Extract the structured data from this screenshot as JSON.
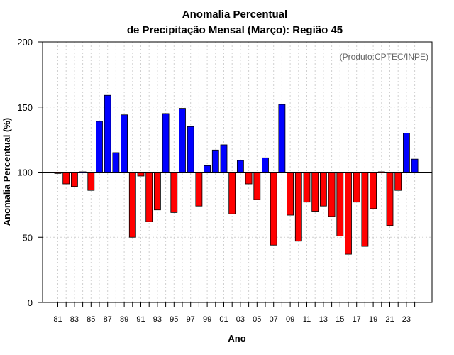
{
  "chart_data": {
    "type": "bar",
    "title_line1": "Anomalia Percentual",
    "title_line2": "de Precipitação Mensal (Março): Região 45",
    "xlabel": "Ano",
    "ylabel": "Anomalia Percentual (%)",
    "annotation": "(Produto:CPTEC/INPE)",
    "ylim": [
      0,
      200
    ],
    "yticks": [
      0,
      50,
      100,
      150,
      200
    ],
    "baseline": 100,
    "grid": true,
    "colors": {
      "above": "#0000ff",
      "below": "#ff0000",
      "grid": "#d0d0d0"
    },
    "years": [
      "1981",
      "1982",
      "1983",
      "1984",
      "1985",
      "1986",
      "1987",
      "1988",
      "1989",
      "1990",
      "1991",
      "1992",
      "1993",
      "1994",
      "1995",
      "1996",
      "1997",
      "1998",
      "1999",
      "2000",
      "2001",
      "2002",
      "2003",
      "2004",
      "2005",
      "2006",
      "2007",
      "2008",
      "2009",
      "2010",
      "2011",
      "2012",
      "2013",
      "2014",
      "2015",
      "2016",
      "2017",
      "2018",
      "2019",
      "2020",
      "2021",
      "2022",
      "2023",
      "2024"
    ],
    "xtick_labels": [
      "81",
      "",
      "83",
      "",
      "85",
      "",
      "87",
      "",
      "89",
      "",
      "91",
      "",
      "93",
      "",
      "95",
      "",
      "97",
      "",
      "99",
      "",
      "01",
      "",
      "03",
      "",
      "05",
      "",
      "07",
      "",
      "09",
      "",
      "11",
      "",
      "13",
      "",
      "15",
      "",
      "17",
      "",
      "19",
      "",
      "21",
      "",
      "23",
      ""
    ],
    "values": [
      99,
      91,
      89,
      100.5,
      86,
      139,
      159,
      115,
      144,
      50,
      97,
      62,
      71,
      145,
      69,
      149,
      135,
      74,
      105,
      117,
      121,
      68,
      109,
      91,
      79,
      111,
      44,
      152,
      67,
      47,
      77,
      70,
      74,
      66,
      51,
      37,
      77,
      43,
      72,
      99.5,
      59,
      86,
      130,
      110
    ]
  }
}
